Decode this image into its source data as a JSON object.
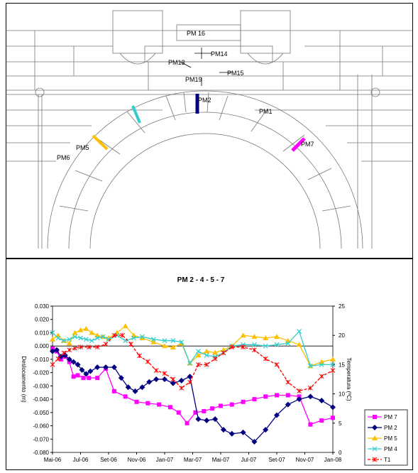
{
  "drawing": {
    "labels": {
      "pm16": "PM 16",
      "pm14": "PM14",
      "pm13": "PM13",
      "pm15": "PM15",
      "pm19": "PM19",
      "pm2": "PM2",
      "pm1": "PM1",
      "pm5": "PM5",
      "pm6": "PM6",
      "pm7": "PM7"
    },
    "colors": {
      "pm2": "#000080",
      "pm4": "#33CCCC",
      "pm5": "#FFC000",
      "pm7": "#FF00FF"
    }
  },
  "chart_data": {
    "type": "line",
    "title": "PM 2 - 4 - 5 - 7",
    "xlabel": "",
    "ylabel_left": "Deslocamento (m)",
    "ylabel_right": "Temperatura (ºC)",
    "x_ticks": [
      "Mai-06",
      "Jul-06",
      "Set-06",
      "Nov-06",
      "Jan-07",
      "Mar-07",
      "Mai-07",
      "Jul-07",
      "Set-07",
      "Nov-07",
      "Jan-08"
    ],
    "y_left_ticks": [
      "0.030",
      "0.020",
      "0.010",
      "0.000",
      "-0.010",
      "-0.020",
      "-0.030",
      "-0.040",
      "-0.050",
      "-0.060",
      "-0.070",
      "-0.080"
    ],
    "y_right_ticks": [
      "25",
      "20",
      "15",
      "10",
      "5",
      "0"
    ],
    "ylim_left": [
      -0.08,
      0.03
    ],
    "ylim_right": [
      0,
      25
    ],
    "grid": false,
    "legend_position": "bottom-right",
    "series": [
      {
        "name": "PM 7",
        "axis": "left",
        "color": "#FF00FF",
        "marker": "square",
        "x": [
          0.0,
          0.15,
          0.3,
          0.45,
          0.6,
          0.75,
          0.9,
          1.1,
          1.3,
          1.6,
          1.9,
          2.2,
          2.6,
          3.0,
          3.4,
          3.8,
          4.2,
          4.5,
          4.8,
          5.1,
          5.4,
          5.7,
          6.0,
          6.4,
          6.8,
          7.2,
          7.6,
          8.0,
          8.4,
          8.8,
          9.2,
          9.6,
          10.0
        ],
        "y": [
          -0.002,
          -0.004,
          -0.01,
          -0.008,
          -0.012,
          -0.023,
          -0.022,
          -0.024,
          -0.024,
          -0.024,
          -0.017,
          -0.034,
          -0.038,
          -0.042,
          -0.043,
          -0.044,
          -0.046,
          -0.05,
          -0.058,
          -0.05,
          -0.049,
          -0.047,
          -0.045,
          -0.044,
          -0.042,
          -0.04,
          -0.038,
          -0.037,
          -0.037,
          -0.038,
          -0.059,
          -0.056,
          -0.054
        ]
      },
      {
        "name": "PM 2",
        "axis": "left",
        "color": "#000080",
        "marker": "diamond",
        "x": [
          0.0,
          0.15,
          0.3,
          0.45,
          0.6,
          0.75,
          0.9,
          1.05,
          1.2,
          1.35,
          1.6,
          1.9,
          2.2,
          2.45,
          2.7,
          2.95,
          3.2,
          3.45,
          3.7,
          4.0,
          4.3,
          4.6,
          4.9,
          5.2,
          5.5,
          5.8,
          6.1,
          6.4,
          6.8,
          7.2,
          7.6,
          8.0,
          8.4,
          8.8,
          9.2,
          9.6,
          10.0
        ],
        "y": [
          -0.004,
          -0.003,
          -0.008,
          -0.007,
          -0.01,
          -0.012,
          -0.014,
          -0.018,
          -0.021,
          -0.019,
          -0.016,
          -0.016,
          -0.016,
          -0.024,
          -0.031,
          -0.034,
          -0.031,
          -0.027,
          -0.025,
          -0.025,
          -0.028,
          -0.026,
          -0.023,
          -0.055,
          -0.056,
          -0.055,
          -0.063,
          -0.066,
          -0.065,
          -0.072,
          -0.063,
          -0.052,
          -0.044,
          -0.04,
          -0.038,
          -0.041,
          -0.046
        ]
      },
      {
        "name": "PM 5",
        "axis": "left",
        "color": "#FFC000",
        "marker": "triangle",
        "x": [
          0.0,
          0.2,
          0.4,
          0.6,
          0.8,
          1.0,
          1.2,
          1.4,
          1.6,
          1.8,
          2.0,
          2.3,
          2.6,
          2.9,
          3.2,
          3.6,
          4.0,
          4.3,
          4.6,
          4.9,
          5.2,
          5.5,
          5.8,
          6.1,
          6.4,
          6.8,
          7.2,
          7.6,
          8.0,
          8.4,
          8.8,
          9.2,
          9.6,
          10.0
        ],
        "y": [
          0.005,
          0.008,
          0.004,
          0.002,
          0.01,
          0.012,
          0.013,
          0.01,
          0.008,
          0.007,
          0.006,
          0.01,
          0.015,
          0.008,
          0.006,
          0.003,
          0.0,
          -0.001,
          0.002,
          -0.013,
          -0.007,
          -0.004,
          -0.005,
          -0.003,
          0.0,
          0.008,
          0.007,
          0.006,
          0.007,
          0.004,
          0.001,
          -0.015,
          -0.012,
          -0.01
        ]
      },
      {
        "name": "PM 4",
        "axis": "left",
        "color": "#33CCCC",
        "marker": "x",
        "x": [
          0.0,
          0.2,
          0.4,
          0.6,
          0.8,
          1.0,
          1.2,
          1.4,
          1.6,
          1.8,
          2.0,
          2.3,
          2.6,
          2.9,
          3.2,
          3.6,
          4.0,
          4.3,
          4.6,
          4.9,
          5.2,
          5.5,
          5.8,
          6.1,
          6.4,
          6.8,
          7.2,
          7.6,
          8.0,
          8.4,
          8.8,
          9.2,
          9.6,
          10.0
        ],
        "y": [
          0.01,
          0.006,
          0.004,
          0.005,
          0.007,
          0.006,
          0.005,
          0.004,
          0.006,
          0.007,
          0.005,
          0.008,
          0.004,
          0.006,
          0.007,
          0.005,
          0.004,
          0.004,
          0.003,
          -0.013,
          -0.004,
          -0.007,
          -0.008,
          -0.005,
          0.0,
          0.001,
          0.001,
          0.0,
          0.001,
          0.002,
          0.011,
          -0.015,
          -0.014,
          -0.014
        ]
      },
      {
        "name": "T1",
        "axis": "right",
        "color": "#FF0000",
        "marker": "star",
        "x": [
          0.0,
          0.2,
          0.4,
          0.6,
          0.8,
          1.0,
          1.3,
          1.6,
          1.9,
          2.2,
          2.5,
          2.8,
          3.1,
          3.4,
          3.7,
          4.0,
          4.3,
          4.6,
          4.9,
          5.2,
          5.5,
          5.8,
          6.1,
          6.4,
          6.8,
          7.2,
          7.6,
          8.0,
          8.4,
          8.8,
          9.2,
          9.6,
          10.0
        ],
        "y": [
          15.0,
          16.0,
          17.0,
          17.5,
          17.8,
          18.0,
          18.0,
          18.0,
          18.5,
          20.0,
          20.0,
          18.5,
          16.5,
          15.5,
          14.0,
          13.5,
          12.5,
          11.0,
          12.0,
          15.0,
          15.0,
          16.0,
          17.0,
          18.0,
          18.0,
          17.5,
          16.0,
          15.0,
          12.0,
          10.5,
          11.0,
          13.0,
          14.0
        ]
      }
    ]
  }
}
